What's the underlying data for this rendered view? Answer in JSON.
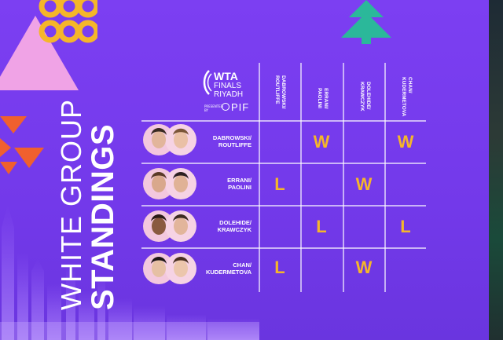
{
  "title": {
    "line1": "WHITE GROUP",
    "line2": "STANDINGS"
  },
  "logo": {
    "brand": "WTA",
    "event_line1": "FINALS",
    "event_line2": "RIYADH",
    "presented": "PRESENTED BY",
    "sponsor": "PIF"
  },
  "columns": [
    "DABROWSKI/\nROUTLIFFE",
    "ERRANI/\nPAOLINI",
    "DOLEHIDE/\nKRAWCZYK",
    "CHAN/\nKUDERMETOVA"
  ],
  "rows": [
    {
      "team": "DABROWSKI/\nROUTLIFFE",
      "results": [
        "",
        "W",
        "",
        "W"
      ]
    },
    {
      "team": "ERRANI/\nPAOLINI",
      "results": [
        "L",
        "",
        "W",
        ""
      ]
    },
    {
      "team": "DOLEHIDE/\nKRAWCZYK",
      "results": [
        "",
        "L",
        "",
        "L"
      ]
    },
    {
      "team": "CHAN/\nKUDERMETOVA",
      "results": [
        "L",
        "",
        "W",
        ""
      ]
    }
  ],
  "colors": {
    "background": "#7a3ff0",
    "result": "#f5b62a",
    "grid": "#ffffff",
    "pink": "#f0a3e6",
    "orange": "#f0602e",
    "teal": "#2bb89a",
    "gold": "#f5b62a"
  }
}
